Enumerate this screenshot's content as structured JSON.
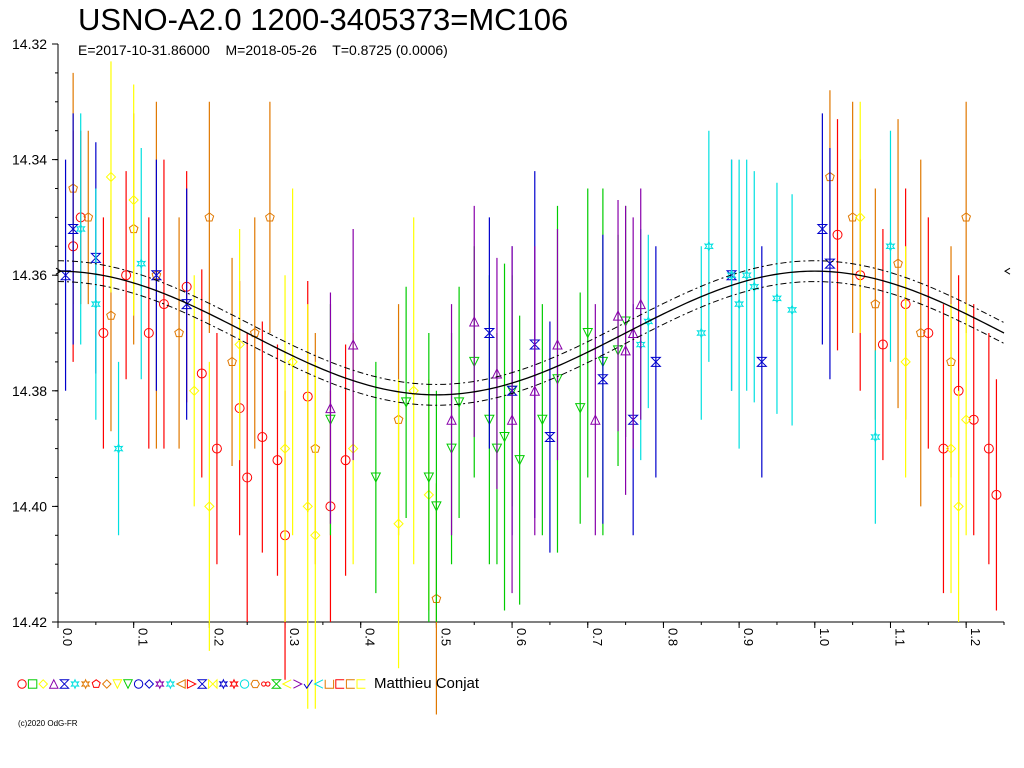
{
  "chart_data": {
    "type": "scatter",
    "title": "USNO-A2.0 1200-3405373=MC106",
    "subtitle": "E=2017-10-31.86000    M=2018-05-26    T=0.8725 (0.0006)",
    "xlabel": "",
    "ylabel": "",
    "xlim": [
      0.0,
      1.25
    ],
    "ylim": [
      14.32,
      14.42
    ],
    "y_inverted": true,
    "x_ticks": [
      "0.0",
      "0.1",
      "0.2",
      "0.3",
      "0.4",
      "0.5",
      "0.6",
      "0.7",
      "0.8",
      "0.9",
      "1.0",
      "1.1",
      "1.2"
    ],
    "y_ticks": [
      "14.32",
      "14.34",
      "14.36",
      "14.38",
      "14.40",
      "14.42"
    ],
    "model": {
      "description": "sinusoidal fit",
      "mean_mag": 14.37,
      "amplitude": 0.0107,
      "phase_of_max": 0.0,
      "envelope_offset": 0.0018
    },
    "series": [
      {
        "color": "#ff0000",
        "points": [
          [
            0.02,
            14.355,
            0.02
          ],
          [
            0.03,
            14.35,
            0.015
          ],
          [
            0.06,
            14.37,
            0.02
          ],
          [
            0.09,
            14.36,
            0.018
          ],
          [
            0.12,
            14.37,
            0.02
          ],
          [
            0.14,
            14.365,
            0.025
          ],
          [
            0.17,
            14.362,
            0.02
          ],
          [
            0.19,
            14.377,
            0.018
          ],
          [
            0.21,
            14.39,
            0.02
          ],
          [
            0.24,
            14.383,
            0.022
          ],
          [
            0.25,
            14.395,
            0.025
          ],
          [
            0.27,
            14.388,
            0.02
          ],
          [
            0.29,
            14.392,
            0.02
          ],
          [
            0.3,
            14.405,
            0.025
          ],
          [
            0.33,
            14.381,
            0.02
          ],
          [
            0.36,
            14.4,
            0.02
          ],
          [
            0.38,
            14.392,
            0.02
          ],
          [
            1.03,
            14.353,
            0.02
          ],
          [
            1.06,
            14.36,
            0.02
          ],
          [
            1.09,
            14.372,
            0.02
          ],
          [
            1.12,
            14.365,
            0.02
          ],
          [
            1.15,
            14.37,
            0.02
          ],
          [
            1.17,
            14.39,
            0.025
          ],
          [
            1.19,
            14.38,
            0.02
          ],
          [
            1.21,
            14.385,
            0.02
          ],
          [
            1.23,
            14.39,
            0.02
          ],
          [
            1.24,
            14.398,
            0.02
          ]
        ]
      },
      {
        "color": "#e07800",
        "points": [
          [
            0.02,
            14.345,
            0.02
          ],
          [
            0.04,
            14.35,
            0.015
          ],
          [
            0.07,
            14.367,
            0.02
          ],
          [
            0.1,
            14.352,
            0.02
          ],
          [
            0.13,
            14.36,
            0.03
          ],
          [
            0.16,
            14.37,
            0.02
          ],
          [
            0.2,
            14.35,
            0.02
          ],
          [
            0.23,
            14.375,
            0.018
          ],
          [
            0.26,
            14.37,
            0.02
          ],
          [
            0.28,
            14.35,
            0.02
          ],
          [
            0.34,
            14.39,
            0.02
          ],
          [
            0.45,
            14.385,
            0.02
          ],
          [
            0.5,
            14.416,
            0.02
          ],
          [
            1.02,
            14.343,
            0.015
          ],
          [
            1.05,
            14.35,
            0.02
          ],
          [
            1.08,
            14.365,
            0.02
          ],
          [
            1.11,
            14.358,
            0.025
          ],
          [
            1.14,
            14.37,
            0.03
          ],
          [
            1.18,
            14.375,
            0.02
          ],
          [
            1.2,
            14.35,
            0.02
          ]
        ]
      },
      {
        "color": "#ffff00",
        "points": [
          [
            0.07,
            14.343,
            0.02
          ],
          [
            0.1,
            14.347,
            0.02
          ],
          [
            0.18,
            14.38,
            0.02
          ],
          [
            0.2,
            14.4,
            0.025
          ],
          [
            0.24,
            14.372,
            0.02
          ],
          [
            0.3,
            14.39,
            0.03
          ],
          [
            0.31,
            14.375,
            0.03
          ],
          [
            0.33,
            14.4,
            0.035
          ],
          [
            0.34,
            14.405,
            0.03
          ],
          [
            0.39,
            14.39,
            0.02
          ],
          [
            0.45,
            14.403,
            0.025
          ],
          [
            0.47,
            14.38,
            0.03
          ],
          [
            0.49,
            14.398,
            0.02
          ],
          [
            1.06,
            14.35,
            0.02
          ],
          [
            1.12,
            14.375,
            0.02
          ],
          [
            1.18,
            14.39,
            0.025
          ],
          [
            1.19,
            14.4,
            0.02
          ],
          [
            1.2,
            14.385,
            0.02
          ]
        ]
      },
      {
        "color": "#00cc00",
        "points": [
          [
            0.36,
            14.385,
            0.02
          ],
          [
            0.42,
            14.395,
            0.02
          ],
          [
            0.46,
            14.382,
            0.02
          ],
          [
            0.49,
            14.395,
            0.025
          ],
          [
            0.5,
            14.4,
            0.02
          ],
          [
            0.52,
            14.39,
            0.02
          ],
          [
            0.53,
            14.382,
            0.02
          ],
          [
            0.55,
            14.375,
            0.02
          ],
          [
            0.57,
            14.385,
            0.025
          ],
          [
            0.58,
            14.39,
            0.02
          ],
          [
            0.59,
            14.388,
            0.03
          ],
          [
            0.6,
            14.38,
            0.02
          ],
          [
            0.61,
            14.392,
            0.025
          ],
          [
            0.64,
            14.385,
            0.02
          ],
          [
            0.66,
            14.378,
            0.03
          ],
          [
            0.69,
            14.383,
            0.02
          ],
          [
            0.7,
            14.37,
            0.025
          ],
          [
            0.72,
            14.375,
            0.03
          ],
          [
            0.74,
            14.373,
            0.02
          ],
          [
            0.75,
            14.368,
            0.02
          ]
        ]
      },
      {
        "color": "#0000cc",
        "points": [
          [
            0.01,
            14.36,
            0.02
          ],
          [
            0.02,
            14.352,
            0.02
          ],
          [
            0.05,
            14.357,
            0.02
          ],
          [
            0.13,
            14.36,
            0.02
          ],
          [
            0.17,
            14.365,
            0.02
          ],
          [
            0.57,
            14.37,
            0.02
          ],
          [
            0.6,
            14.38,
            0.025
          ],
          [
            0.63,
            14.372,
            0.03
          ],
          [
            0.65,
            14.388,
            0.02
          ],
          [
            0.72,
            14.378,
            0.025
          ],
          [
            0.76,
            14.385,
            0.02
          ],
          [
            0.79,
            14.375,
            0.02
          ],
          [
            0.89,
            14.36,
            0.02
          ],
          [
            0.93,
            14.375,
            0.02
          ],
          [
            1.01,
            14.352,
            0.02
          ],
          [
            1.02,
            14.358,
            0.02
          ]
        ]
      },
      {
        "color": "#00e0e0",
        "points": [
          [
            0.03,
            14.352,
            0.02
          ],
          [
            0.05,
            14.365,
            0.02
          ],
          [
            0.08,
            14.39,
            0.015
          ],
          [
            0.11,
            14.358,
            0.02
          ],
          [
            0.77,
            14.372,
            0.02
          ],
          [
            0.78,
            14.368,
            0.015
          ],
          [
            0.85,
            14.37,
            0.015
          ],
          [
            0.86,
            14.355,
            0.02
          ],
          [
            0.89,
            14.36,
            0.02
          ],
          [
            0.9,
            14.365,
            0.025
          ],
          [
            0.91,
            14.36,
            0.02
          ],
          [
            0.92,
            14.362,
            0.02
          ],
          [
            0.95,
            14.364,
            0.02
          ],
          [
            0.97,
            14.366,
            0.02
          ],
          [
            1.08,
            14.388,
            0.015
          ],
          [
            1.1,
            14.355,
            0.02
          ]
        ]
      },
      {
        "color": "#8800aa",
        "points": [
          [
            0.36,
            14.383,
            0.02
          ],
          [
            0.39,
            14.372,
            0.02
          ],
          [
            0.52,
            14.385,
            0.02
          ],
          [
            0.55,
            14.368,
            0.02
          ],
          [
            0.58,
            14.377,
            0.02
          ],
          [
            0.6,
            14.385,
            0.03
          ],
          [
            0.63,
            14.38,
            0.025
          ],
          [
            0.66,
            14.372,
            0.02
          ],
          [
            0.71,
            14.385,
            0.02
          ],
          [
            0.74,
            14.367,
            0.02
          ],
          [
            0.75,
            14.373,
            0.025
          ],
          [
            0.76,
            14.37,
            0.02
          ],
          [
            0.77,
            14.365,
            0.02
          ]
        ]
      }
    ]
  },
  "legend": {
    "observer": "Matthieu Conjat",
    "symbols": [
      {
        "shape": "circle",
        "color": "#ff0000"
      },
      {
        "shape": "square",
        "color": "#00cc00"
      },
      {
        "shape": "diamond",
        "color": "#ffff00"
      },
      {
        "shape": "triangle-up",
        "color": "#8800aa"
      },
      {
        "shape": "hourglass",
        "color": "#0000cc"
      },
      {
        "shape": "star",
        "color": "#00e0e0"
      },
      {
        "shape": "star",
        "color": "#e07800"
      },
      {
        "shape": "pentagon",
        "color": "#ff0000"
      },
      {
        "shape": "diamond",
        "color": "#e07800"
      },
      {
        "shape": "triangle-down",
        "color": "#ffff00"
      },
      {
        "shape": "triangle-down",
        "color": "#00cc00"
      },
      {
        "shape": "circle",
        "color": "#0000cc"
      },
      {
        "shape": "diamond",
        "color": "#0000cc"
      },
      {
        "shape": "star",
        "color": "#8800aa"
      },
      {
        "shape": "star",
        "color": "#00e0e0"
      },
      {
        "shape": "triangle-left",
        "color": "#e07800"
      },
      {
        "shape": "triangle-right",
        "color": "#ff0000"
      },
      {
        "shape": "hourglass",
        "color": "#0000cc"
      },
      {
        "shape": "bowtie",
        "color": "#ffff00"
      },
      {
        "shape": "star",
        "color": "#0000cc"
      },
      {
        "shape": "star",
        "color": "#ff0000"
      },
      {
        "shape": "circle",
        "color": "#00e0e0"
      },
      {
        "shape": "hexagon",
        "color": "#e07800"
      },
      {
        "shape": "infinity",
        "color": "#ff0000"
      },
      {
        "shape": "hourglass",
        "color": "#00cc00"
      },
      {
        "shape": "chevron-left",
        "color": "#ffff00"
      },
      {
        "shape": "chevron-right",
        "color": "#8800aa"
      },
      {
        "shape": "check",
        "color": "#0000cc"
      },
      {
        "shape": "chevron-left",
        "color": "#00e0e0"
      },
      {
        "shape": "cup",
        "color": "#e07800"
      },
      {
        "shape": "bracket",
        "color": "#ff0000"
      },
      {
        "shape": "bracket",
        "color": "#e07800"
      },
      {
        "shape": "bracket",
        "color": "#ffff00"
      }
    ]
  },
  "copyright": "(c)2020 OdG-FR"
}
